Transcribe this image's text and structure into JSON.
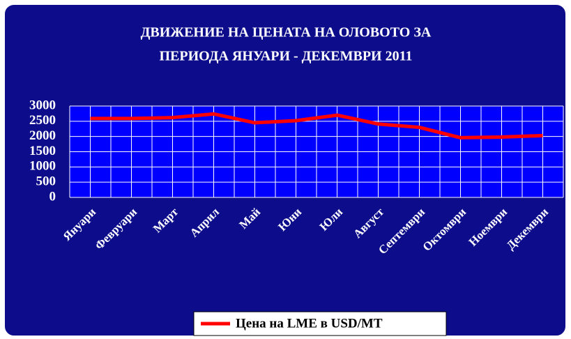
{
  "chart_data": {
    "type": "line",
    "title": [
      "ДВИЖЕНИЕ НА ЦЕНАТА НА ОЛОВОТО ЗА",
      "ПЕРИОДА ЯНУАРИ - ДЕКЕМВРИ  2011"
    ],
    "categories": [
      "Януари",
      "Февруари",
      "Март",
      "Април",
      "Май",
      "Юни",
      "Юли",
      "Август",
      "Септември",
      "Октомври",
      "Ноември",
      "Декември"
    ],
    "series": [
      {
        "name": "Цена на LME в USD/MT",
        "color": "#ff0000",
        "values": [
          2590,
          2590,
          2620,
          2740,
          2450,
          2520,
          2700,
          2410,
          2300,
          1960,
          1980,
          2030
        ]
      }
    ],
    "ylim": [
      0,
      3000
    ],
    "yticks": [
      0,
      500,
      1000,
      1500,
      2000,
      2500,
      3000
    ],
    "grid": true,
    "legend": "bottom"
  }
}
